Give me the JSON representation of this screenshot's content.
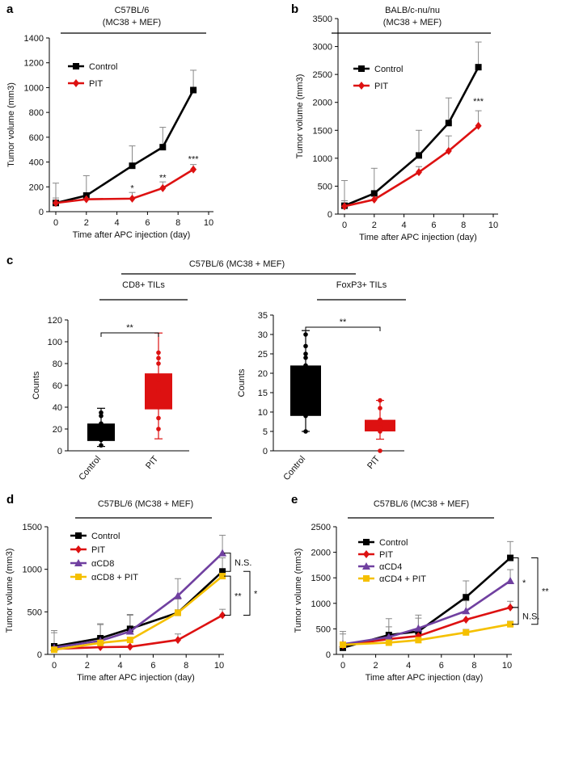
{
  "colors": {
    "control": "#000000",
    "pit": "#dd1111",
    "purple": "#7040a0",
    "yellow": "#f5c000",
    "errbar": "#888888"
  },
  "chart_data": [
    {
      "id": "a",
      "panel_label": "a",
      "type": "line",
      "header": [
        "C57BL/6",
        "(MC38 + MEF)"
      ],
      "xlabel": "Time after APC injection (day)",
      "ylabel": "Tumor volume (mm3)",
      "xlim": [
        0,
        10
      ],
      "xticks": [
        0,
        2,
        4,
        6,
        8,
        10
      ],
      "ylim": [
        0,
        1400
      ],
      "yticks": [
        0,
        200,
        400,
        600,
        800,
        1000,
        1200,
        1400
      ],
      "legend": "top-left",
      "series": [
        {
          "name": "Control",
          "color": "#000000",
          "marker": "square",
          "x": [
            0,
            2,
            5,
            7,
            9
          ],
          "y": [
            70,
            130,
            370,
            520,
            980
          ],
          "err": [
            160,
            160,
            160,
            160,
            160
          ]
        },
        {
          "name": "PIT",
          "color": "#dd1111",
          "marker": "diamond",
          "x": [
            0,
            2,
            5,
            7,
            9
          ],
          "y": [
            70,
            100,
            105,
            190,
            340
          ],
          "err": [
            40,
            0,
            50,
            50,
            40
          ]
        }
      ],
      "annotations": [
        {
          "text": "*",
          "x": 5,
          "y": 165
        },
        {
          "text": "**",
          "x": 7,
          "y": 250
        },
        {
          "text": "***",
          "x": 9,
          "y": 400
        }
      ]
    },
    {
      "id": "b",
      "panel_label": "b",
      "type": "line",
      "header": [
        "BALB/c-nu/nu",
        "(MC38 + MEF)"
      ],
      "xlabel": "Time after APC injection (day)",
      "ylabel": "Tumor volume (mm3)",
      "xlim": [
        0,
        10
      ],
      "xticks": [
        0,
        2,
        4,
        6,
        8,
        10
      ],
      "ylim": [
        0,
        3500
      ],
      "yticks": [
        0,
        500,
        1000,
        1500,
        2000,
        2500,
        3000,
        3500
      ],
      "legend": "top-left",
      "series": [
        {
          "name": "Control",
          "color": "#000000",
          "marker": "square",
          "x": [
            0,
            2,
            5,
            7,
            9
          ],
          "y": [
            150,
            370,
            1050,
            1630,
            2630
          ],
          "err": [
            450,
            450,
            450,
            450,
            450
          ]
        },
        {
          "name": "PIT",
          "color": "#dd1111",
          "marker": "diamond",
          "x": [
            0,
            2,
            5,
            7,
            9
          ],
          "y": [
            140,
            260,
            750,
            1130,
            1580
          ],
          "err": [
            100,
            100,
            100,
            270,
            270
          ]
        }
      ],
      "annotations": [
        {
          "text": "***",
          "x": 9,
          "y": 1970
        }
      ]
    },
    {
      "id": "c-left",
      "panel_label": "c",
      "type": "box",
      "group_header": "C57BL/6 (MC38 + MEF)",
      "subtitle": "CD8+ TILs",
      "ylabel": "Counts",
      "ylim": [
        0,
        120
      ],
      "yticks": [
        0,
        20,
        40,
        60,
        80,
        100,
        120
      ],
      "categories": [
        "Control",
        "PIT"
      ],
      "boxes": [
        {
          "name": "Control",
          "color": "#000000",
          "min": 4,
          "q1": 9,
          "median": 20,
          "q3": 25,
          "max": 39,
          "points": [
            5,
            10,
            20,
            25,
            32,
            35
          ]
        },
        {
          "name": "PIT",
          "color": "#dd1111",
          "min": 11,
          "q1": 38,
          "median": 55,
          "q3": 71,
          "max": 108,
          "points": [
            20,
            30,
            55,
            65,
            80,
            85,
            90
          ]
        }
      ],
      "significance": "**"
    },
    {
      "id": "c-right",
      "panel_label": "",
      "type": "box",
      "subtitle": "FoxP3+ TILs",
      "ylabel": "Counts",
      "ylim": [
        0,
        35
      ],
      "yticks": [
        0,
        5,
        10,
        15,
        20,
        25,
        30,
        35
      ],
      "categories": [
        "Control",
        "PIT"
      ],
      "boxes": [
        {
          "name": "Control",
          "color": "#000000",
          "min": 5,
          "q1": 9,
          "median": 15,
          "q3": 22,
          "max": 31,
          "points": [
            5,
            9,
            15,
            22,
            24,
            25,
            27,
            30
          ]
        },
        {
          "name": "PIT",
          "color": "#dd1111",
          "min": 3,
          "q1": 5,
          "median": 7,
          "q3": 8,
          "max": 13,
          "points": [
            0,
            5,
            6,
            8,
            11,
            13
          ]
        }
      ],
      "significance": "**"
    },
    {
      "id": "d",
      "panel_label": "d",
      "type": "line",
      "header": [
        "C57BL/6 (MC38 + MEF)"
      ],
      "xlabel": "Time after APC injection (day)",
      "ylabel": "Tumor volume (mm3)",
      "xlim": [
        0,
        10
      ],
      "xticks": [
        0,
        2,
        4,
        6,
        8,
        10
      ],
      "ylim": [
        0,
        1500
      ],
      "yticks": [
        0,
        500,
        1000,
        1500
      ],
      "legend": "top-left",
      "series": [
        {
          "name": "Control",
          "color": "#000000",
          "marker": "square",
          "x": [
            0,
            2.8,
            4.6,
            7.5,
            10.2
          ],
          "y": [
            95,
            190,
            300,
            490,
            975
          ],
          "err": [
            160,
            160,
            160,
            160,
            160
          ]
        },
        {
          "name": "PIT",
          "color": "#dd1111",
          "marker": "diamond",
          "x": [
            0,
            2.8,
            4.6,
            7.5,
            10.2
          ],
          "y": [
            65,
            85,
            90,
            170,
            460
          ],
          "err": [
            0,
            0,
            0,
            70,
            70
          ]
        },
        {
          "name": "αCD8",
          "color": "#7040a0",
          "marker": "triangle",
          "x": [
            0,
            2.8,
            4.6,
            7.5,
            10.2
          ],
          "y": [
            80,
            160,
            270,
            690,
            1190
          ],
          "err": [
            200,
            200,
            200,
            200,
            210
          ]
        },
        {
          "name": "αCD8 + PIT",
          "color": "#f5c000",
          "marker": "square",
          "x": [
            0,
            2.8,
            4.6,
            7.5,
            10.2
          ],
          "y": [
            55,
            135,
            170,
            490,
            920
          ],
          "err": [
            0,
            0,
            0,
            0,
            0
          ]
        }
      ],
      "brackets": [
        {
          "label": "N.S.",
          "y1": 975,
          "y2": 1190,
          "level": 1
        },
        {
          "label": "**",
          "y1": 460,
          "y2": 920,
          "level": 1
        },
        {
          "label": "*",
          "y1": 460,
          "y2": 975,
          "level": 2
        }
      ]
    },
    {
      "id": "e",
      "panel_label": "e",
      "type": "line",
      "header": [
        "C57BL/6 (MC38 + MEF)"
      ],
      "xlabel": "Time after APC injection (day)",
      "ylabel": "Tumor volume (mm3)",
      "xlim": [
        0,
        10
      ],
      "xticks": [
        0,
        2,
        4,
        6,
        8,
        10
      ],
      "ylim": [
        0,
        2500
      ],
      "yticks": [
        0,
        500,
        1000,
        1500,
        2000,
        2500
      ],
      "legend": "top-left",
      "series": [
        {
          "name": "Control",
          "color": "#000000",
          "marker": "square",
          "x": [
            0,
            2.8,
            4.6,
            7.5,
            10.2
          ],
          "y": [
            130,
            380,
            450,
            1120,
            1890
          ],
          "err": [
            320,
            320,
            320,
            320,
            320
          ]
        },
        {
          "name": "PIT",
          "color": "#dd1111",
          "marker": "diamond",
          "x": [
            0,
            2.8,
            4.6,
            7.5,
            10.2
          ],
          "y": [
            180,
            300,
            360,
            680,
            920
          ],
          "err": [
            0,
            0,
            0,
            0,
            120
          ]
        },
        {
          "name": "αCD4",
          "color": "#7040a0",
          "marker": "triangle",
          "x": [
            0,
            2.8,
            4.6,
            7.5,
            10.2
          ],
          "y": [
            200,
            340,
            510,
            850,
            1440
          ],
          "err": [
            200,
            200,
            200,
            200,
            220
          ]
        },
        {
          "name": "αCD4 + PIT",
          "color": "#f5c000",
          "marker": "square",
          "x": [
            0,
            2.8,
            4.6,
            7.5,
            10.2
          ],
          "y": [
            190,
            230,
            280,
            430,
            590
          ],
          "err": [
            0,
            0,
            0,
            60,
            60
          ]
        }
      ],
      "brackets": [
        {
          "label": "*",
          "y1": 920,
          "y2": 1890,
          "level": 1
        },
        {
          "label": "N.S.",
          "y1": 590,
          "y2": 920,
          "level": 1
        },
        {
          "label": "**",
          "y1": 590,
          "y2": 1890,
          "level": 2
        }
      ]
    }
  ]
}
